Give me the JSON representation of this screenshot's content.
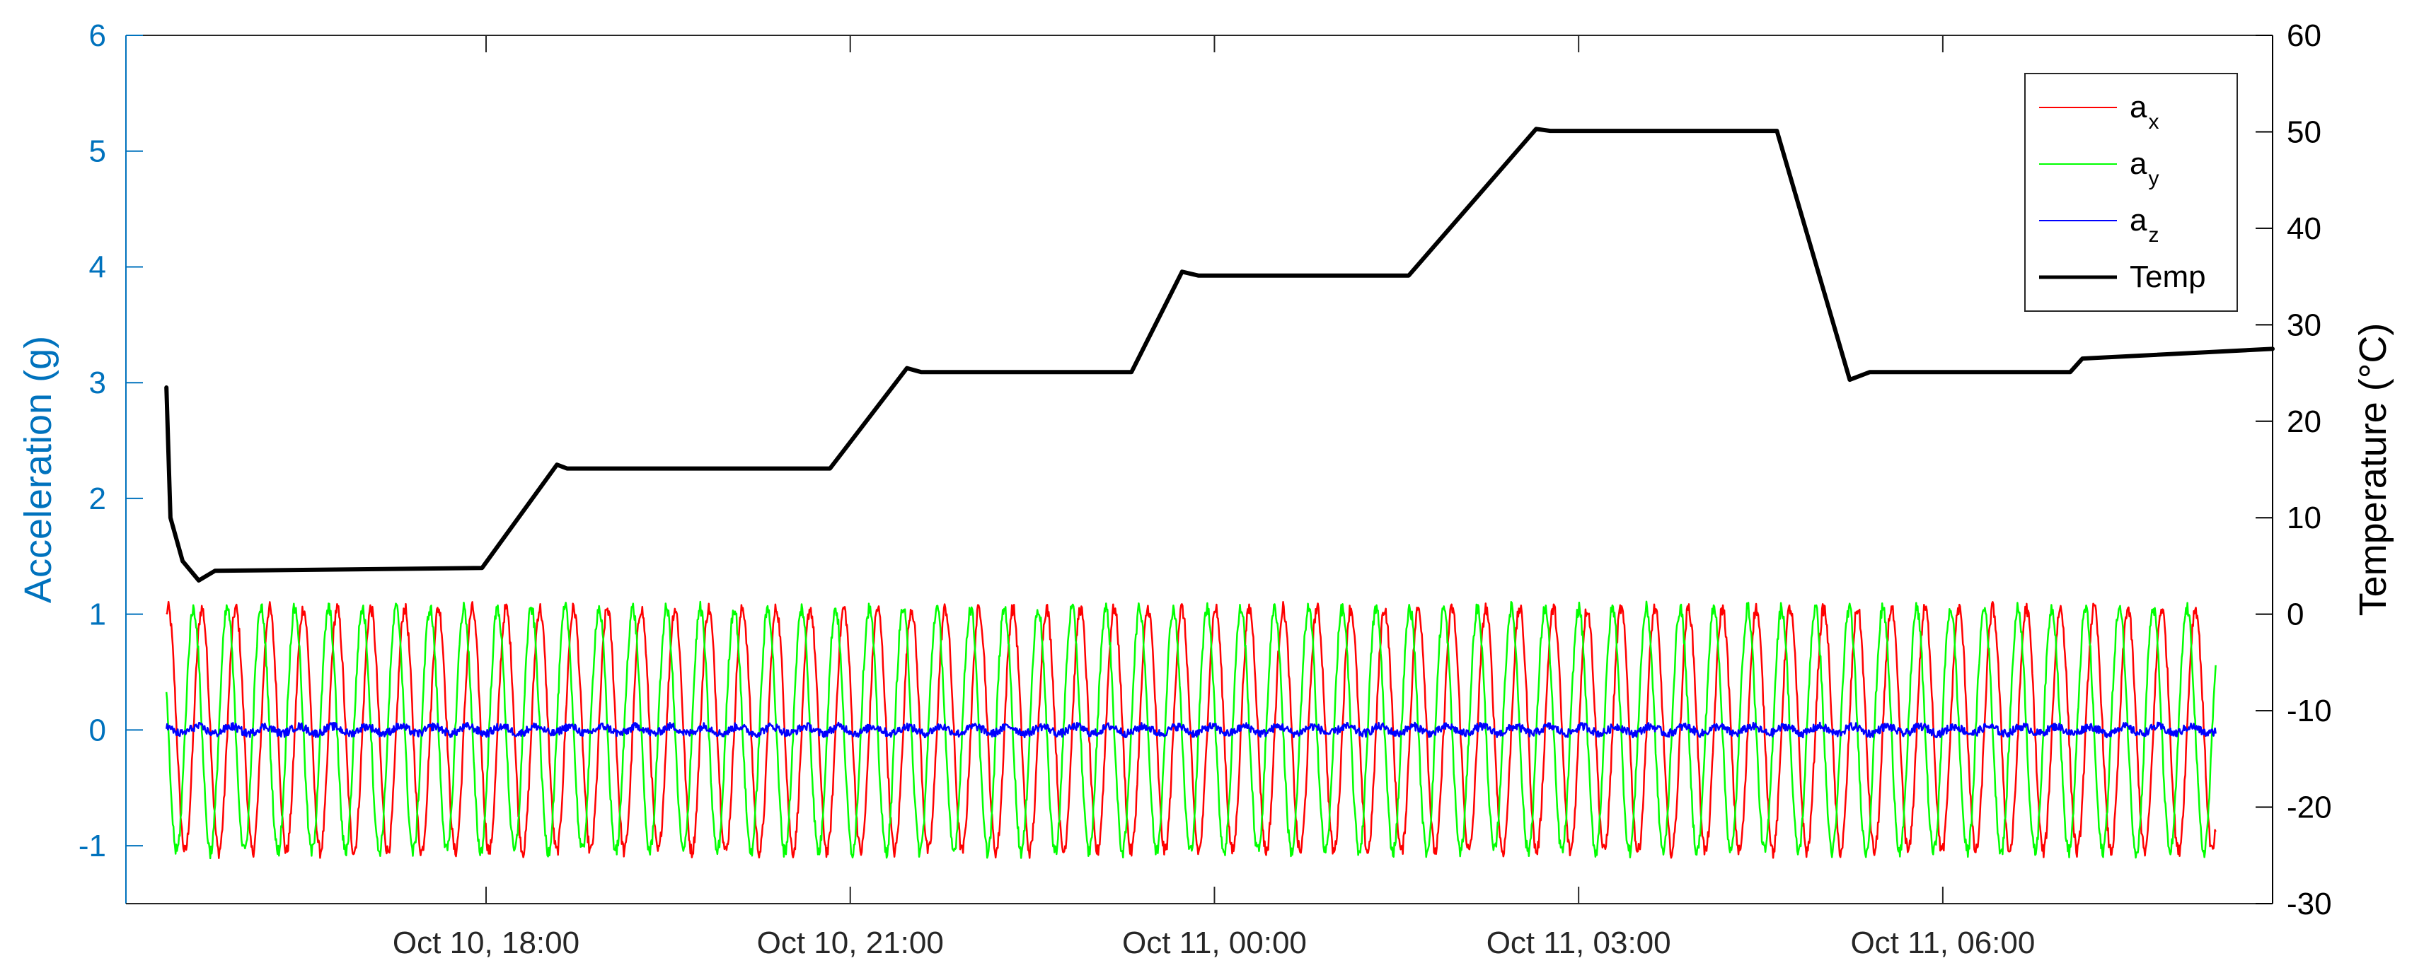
{
  "chart_data": {
    "type": "line",
    "x_axis": {
      "type": "time",
      "range": [
        "2023-10-10 15:02",
        "2023-10-11 08:43"
      ],
      "ticks": [
        {
          "value": "2023-10-10 18:00",
          "label": "Oct 10, 18:00"
        },
        {
          "value": "2023-10-10 21:00",
          "label": "Oct 10, 21:00"
        },
        {
          "value": "2023-10-11 00:00",
          "label": "Oct 11, 00:00"
        },
        {
          "value": "2023-10-11 03:00",
          "label": "Oct 11, 03:00"
        },
        {
          "value": "2023-10-11 06:00",
          "label": "Oct 11, 06:00"
        }
      ]
    },
    "y_left": {
      "label": "Acceleration (g)",
      "color": "#0072BD",
      "ylim": [
        -1.5,
        6
      ],
      "ticks": [
        -1,
        0,
        1,
        2,
        3,
        4,
        5,
        6
      ]
    },
    "y_right": {
      "label": "Temperature (°C)",
      "color": "#000000",
      "ylim": [
        -30,
        60
      ],
      "ticks": [
        -30,
        -20,
        -10,
        0,
        10,
        20,
        30,
        40,
        50,
        60
      ]
    },
    "grid": false,
    "legend": {
      "placement": "top-right",
      "entries": [
        {
          "base": "a",
          "sub": "x",
          "color": "#ff0000",
          "width": 2
        },
        {
          "base": "a",
          "sub": "y",
          "color": "#00ff00",
          "width": 2
        },
        {
          "base": "a",
          "sub": "z",
          "color": "#0000ff",
          "width": 2
        },
        {
          "base": "Temp",
          "sub": "",
          "color": "#000000",
          "width": 5
        }
      ]
    },
    "accel_series": [
      {
        "name": "a_x",
        "color": "#ff0000",
        "amplitude_g": 1.05,
        "offset_g": 0.0,
        "period_minutes": 16.7,
        "phase_deg": 0,
        "y_range": [
          -1.15,
          1.15
        ],
        "axis": "left"
      },
      {
        "name": "a_y",
        "color": "#00ff00",
        "amplitude_g": 1.05,
        "offset_g": 0.0,
        "period_minutes": 16.7,
        "phase_deg": 90,
        "y_range": [
          -1.2,
          1.3
        ],
        "axis": "left"
      },
      {
        "name": "a_z",
        "color": "#0000ff",
        "amplitude_g": 0.03,
        "offset_g": 0.0,
        "period_minutes": 16.7,
        "phase_deg": 45,
        "y_range": [
          -0.1,
          0.1
        ],
        "axis": "left"
      }
    ],
    "temp_series": {
      "name": "Temp",
      "color": "#000000",
      "axis": "right",
      "points": [
        {
          "t": "2023-10-10 15:22",
          "y": 23.5
        },
        {
          "t": "2023-10-10 15:24",
          "y": 10
        },
        {
          "t": "2023-10-10 15:30",
          "y": 5.5
        },
        {
          "t": "2023-10-10 15:38",
          "y": 3.5
        },
        {
          "t": "2023-10-10 15:46",
          "y": 4.5
        },
        {
          "t": "2023-10-10 17:58",
          "y": 4.8
        },
        {
          "t": "2023-10-10 18:35",
          "y": 15.5
        },
        {
          "t": "2023-10-10 18:40",
          "y": 15.1
        },
        {
          "t": "2023-10-10 20:50",
          "y": 15.1
        },
        {
          "t": "2023-10-10 21:28",
          "y": 25.5
        },
        {
          "t": "2023-10-10 21:35",
          "y": 25.1
        },
        {
          "t": "2023-10-10 23:19",
          "y": 25.1
        },
        {
          "t": "2023-10-10 23:44",
          "y": 35.5
        },
        {
          "t": "2023-10-10 23:52",
          "y": 35.1
        },
        {
          "t": "2023-10-11 01:36",
          "y": 35.1
        },
        {
          "t": "2023-10-11 02:39",
          "y": 50.3
        },
        {
          "t": "2023-10-11 02:46",
          "y": 50.1
        },
        {
          "t": "2023-10-11 04:38",
          "y": 50.1
        },
        {
          "t": "2023-10-11 05:14",
          "y": 24.3
        },
        {
          "t": "2023-10-11 05:24",
          "y": 25.1
        },
        {
          "t": "2023-10-11 07:03",
          "y": 25.1
        },
        {
          "t": "2023-10-11 07:09",
          "y": 26.5
        },
        {
          "t": "2023-10-11 08:43",
          "y": 27.5
        }
      ]
    }
  }
}
